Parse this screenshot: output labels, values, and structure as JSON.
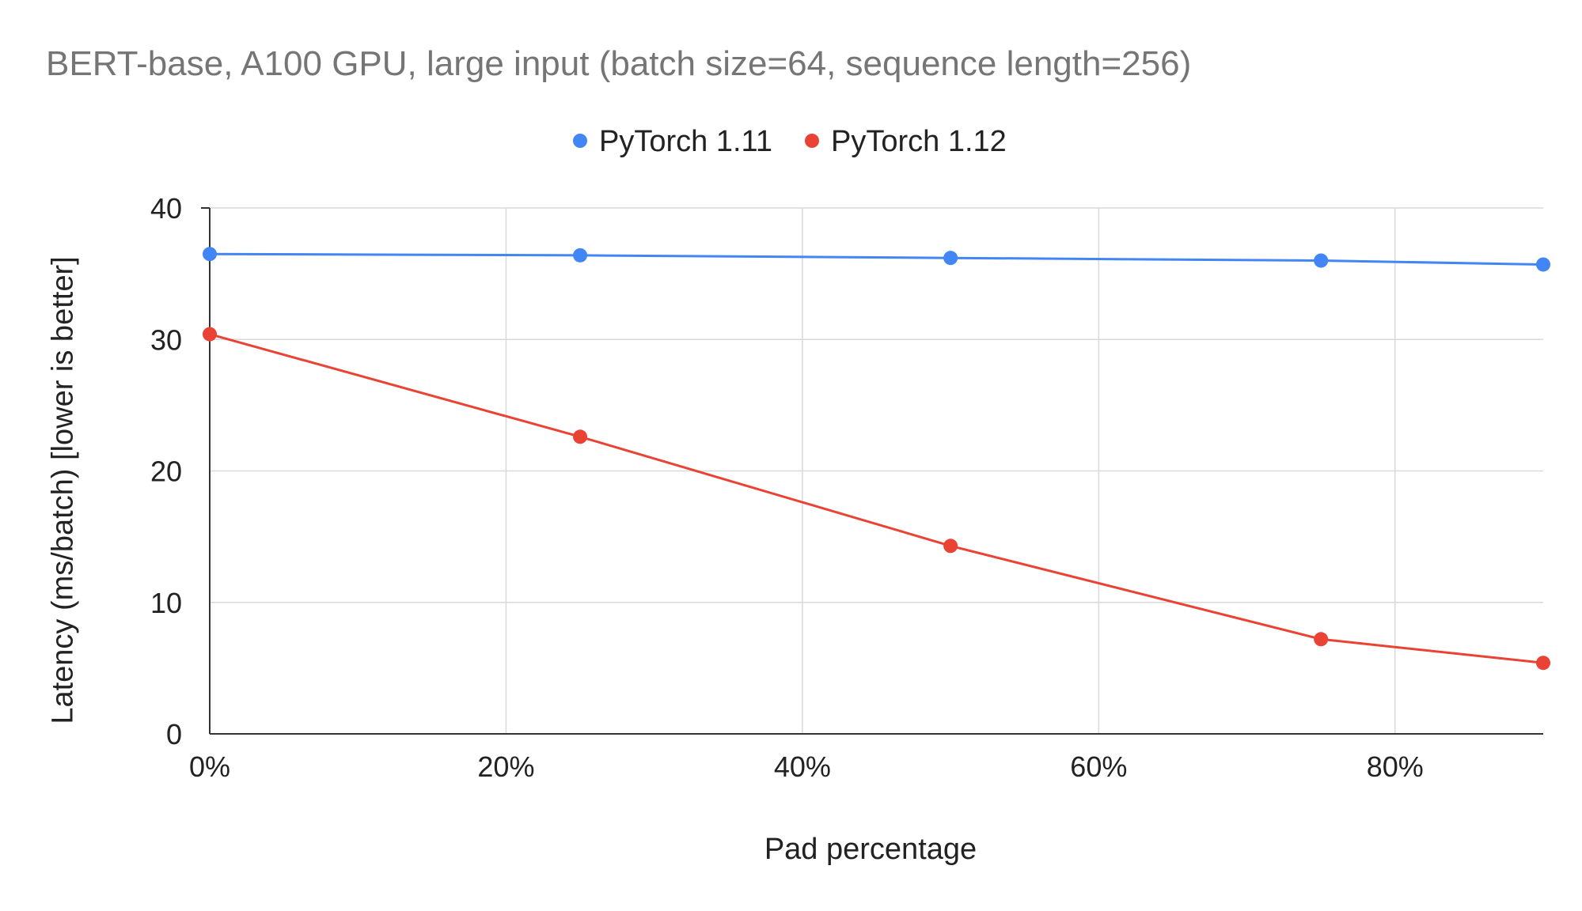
{
  "chart_data": {
    "type": "line",
    "title": "BERT-base, A100 GPU, large input (batch size=64, sequence length=256)",
    "xlabel": "Pad percentage",
    "ylabel": "Latency (ms/batch) [lower is better]",
    "x_ticks": [
      "0%",
      "20%",
      "40%",
      "60%",
      "80%"
    ],
    "y_ticks": [
      "0",
      "10",
      "20",
      "30",
      "40"
    ],
    "xlim": [
      0,
      0.9
    ],
    "ylim": [
      0,
      40
    ],
    "grid": true,
    "legend_position": "top-center",
    "x": [
      0,
      0.25,
      0.5,
      0.75,
      0.9
    ],
    "series": [
      {
        "name": "PyTorch 1.11",
        "color": "#4285f4",
        "values": [
          36.5,
          36.4,
          36.2,
          36.0,
          35.7
        ]
      },
      {
        "name": "PyTorch 1.12",
        "color": "#ea4335",
        "values": [
          30.4,
          22.6,
          14.3,
          7.2,
          5.4
        ]
      }
    ]
  }
}
